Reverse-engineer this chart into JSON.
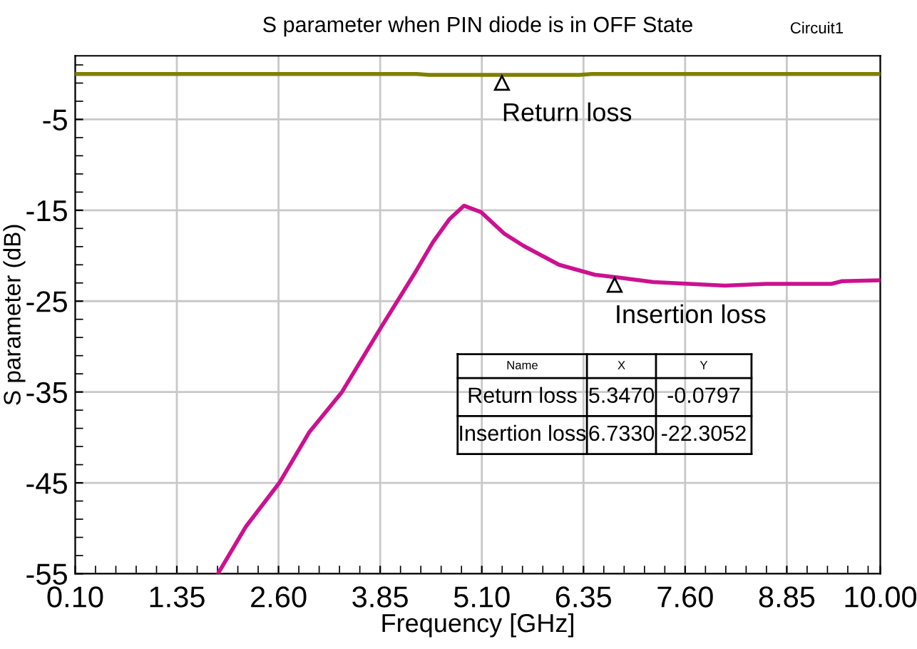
{
  "chart_data": {
    "type": "line",
    "title": "S parameter when PIN diode is in OFF State",
    "xlabel": "Frequency [GHz]",
    "ylabel": "S parameter (dB)",
    "xlim": [
      0.1,
      10.0
    ],
    "xticks": [
      {
        "value": 0.1,
        "label": "0.10"
      },
      {
        "value": 1.35,
        "label": "1.35"
      },
      {
        "value": 2.6,
        "label": "2.60"
      },
      {
        "value": 3.85,
        "label": "3.85"
      },
      {
        "value": 5.1,
        "label": "5.10"
      },
      {
        "value": 6.35,
        "label": "6.35"
      },
      {
        "value": 7.6,
        "label": "7.60"
      },
      {
        "value": 8.85,
        "label": "8.85"
      },
      {
        "value": 10.0,
        "label": "10.00"
      }
    ],
    "ylim": [
      -55,
      2
    ],
    "yticks": [
      -55,
      -45,
      -35,
      -25,
      -15,
      -5
    ],
    "grid": true,
    "marker": "none",
    "line_style": "solid",
    "series": [
      {
        "color": "#7f7f00",
        "x": [
          0.1,
          4.3,
          4.45,
          6.3,
          6.45,
          10.0
        ],
        "values": [
          0,
          0,
          -0.1,
          -0.1,
          0,
          0
        ]
      },
      {
        "color": "#cc1190",
        "x": [
          1.855,
          2.2,
          2.61,
          2.98,
          3.38,
          3.86,
          4.29,
          4.5,
          4.7,
          4.88,
          5.09,
          5.38,
          5.61,
          6.05,
          6.49,
          6.77,
          7.21,
          8.09,
          8.6,
          9.4,
          9.53,
          10.0
        ],
        "values": [
          -55,
          -49.8,
          -45,
          -39.4,
          -35,
          -27.9,
          -21.7,
          -18.5,
          -16,
          -14.5,
          -15.2,
          -17.6,
          -18.9,
          -21,
          -22.1,
          -22.4,
          -22.9,
          -23.3,
          -23.1,
          -23.1,
          -22.8,
          -22.7
        ]
      }
    ],
    "annotations": [
      {
        "text": "Return loss",
        "x": 5.347,
        "y": -0.0797
      },
      {
        "text": "Insertion loss",
        "x": 6.733,
        "y": -22.3052
      },
      "Circuit1",
      "Name",
      "X",
      "Y",
      "Return loss",
      "5.3470",
      "-0.0797",
      "Insertion loss",
      "6.7330",
      "-22.3052"
    ]
  }
}
